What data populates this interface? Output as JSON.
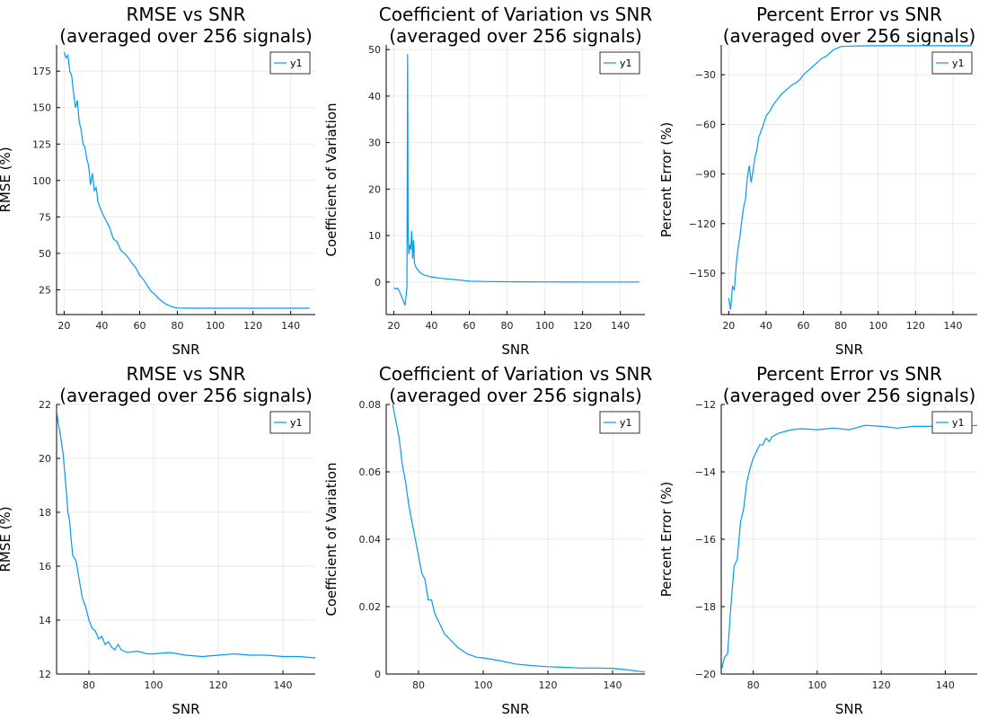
{
  "figure": {
    "background": "#ffffff",
    "series_color": "#009af9"
  },
  "chart_data": [
    {
      "type": "line",
      "title": [
        "RMSE vs SNR",
        "(averaged over 256 signals)"
      ],
      "xlabel": "SNR",
      "ylabel": "RMSE (%)",
      "xlim": [
        16,
        153
      ],
      "ylim": [
        8,
        193
      ],
      "xticks": [
        20,
        40,
        60,
        80,
        100,
        120,
        140
      ],
      "yticks": [
        25,
        50,
        75,
        100,
        125,
        150,
        175
      ],
      "grid": true,
      "legend": {
        "position": "top-right",
        "entries": [
          "y1"
        ]
      },
      "series": [
        {
          "name": "y1",
          "x": [
            20,
            21,
            22,
            23,
            24,
            25,
            26,
            27,
            28,
            29,
            30,
            31,
            32,
            33,
            34,
            35,
            36,
            37,
            38,
            40,
            42,
            44,
            46,
            48,
            50,
            52,
            54,
            56,
            58,
            60,
            62,
            64,
            66,
            68,
            70,
            72,
            74,
            76,
            78,
            80,
            85,
            90,
            100,
            110,
            120,
            130,
            140,
            150
          ],
          "y": [
            188,
            184,
            186,
            175,
            172,
            160,
            150,
            155,
            140,
            135,
            125,
            123,
            115,
            110,
            97,
            105,
            93,
            95,
            85,
            78,
            73,
            68,
            60,
            58,
            52,
            50,
            47,
            43,
            40,
            35,
            32,
            28,
            24,
            22,
            19,
            17,
            15,
            14,
            13,
            12.5,
            12.4,
            12.3,
            12.3,
            12.3,
            12.3,
            12.3,
            12.3,
            12.3
          ]
        }
      ]
    },
    {
      "type": "line",
      "title": [
        "Coefficient of Variation vs SNR",
        "(averaged over 256 signals)"
      ],
      "xlabel": "SNR",
      "ylabel": "Coefficient of Variation",
      "xlim": [
        16,
        153
      ],
      "ylim": [
        -7,
        51
      ],
      "xticks": [
        20,
        40,
        60,
        80,
        100,
        120,
        140
      ],
      "yticks": [
        0,
        10,
        20,
        30,
        40,
        50
      ],
      "grid": true,
      "legend": {
        "position": "top-right",
        "entries": [
          "y1"
        ]
      },
      "series": [
        {
          "name": "y1",
          "x": [
            20,
            21,
            22,
            23,
            24,
            25,
            26,
            27,
            27.3,
            27.6,
            28,
            28.5,
            29,
            29.5,
            30,
            30.5,
            31,
            32,
            33,
            34,
            36,
            38,
            40,
            45,
            50,
            55,
            60,
            70,
            80,
            100,
            120,
            150
          ],
          "y": [
            -1.2,
            -1.5,
            -1.3,
            -2,
            -3,
            -4,
            -5,
            -1,
            49,
            10,
            6,
            8,
            7,
            11,
            5,
            9,
            4,
            3,
            2.5,
            2,
            1.5,
            1.3,
            1.1,
            0.8,
            0.6,
            0.4,
            0.2,
            0.1,
            0.05,
            0.01,
            0.005,
            0.002
          ]
        }
      ]
    },
    {
      "type": "line",
      "title": [
        "Percent Error vs SNR",
        "(averaged over 256 signals)"
      ],
      "xlabel": "SNR",
      "ylabel": "Percent Error (%)",
      "xlim": [
        16,
        153
      ],
      "ylim": [
        -175,
        -12
      ],
      "xticks": [
        20,
        40,
        60,
        80,
        100,
        120,
        140
      ],
      "yticks": [
        -30,
        -60,
        -90,
        -120,
        -150
      ],
      "grid": true,
      "legend": {
        "position": "top-right",
        "entries": [
          "y1"
        ]
      },
      "series": [
        {
          "name": "y1",
          "x": [
            20,
            21,
            22,
            23,
            24,
            25,
            26,
            27,
            28,
            29,
            30,
            31,
            32,
            33,
            34,
            35,
            36,
            38,
            40,
            42,
            44,
            46,
            48,
            50,
            52,
            54,
            56,
            58,
            60,
            62,
            64,
            66,
            68,
            70,
            72,
            74,
            76,
            78,
            80,
            85,
            90,
            100,
            110,
            120,
            130,
            140,
            150
          ],
          "y": [
            -165,
            -172,
            -158,
            -160,
            -145,
            -135,
            -128,
            -118,
            -110,
            -105,
            -92,
            -85,
            -95,
            -88,
            -80,
            -76,
            -68,
            -62,
            -55,
            -52,
            -48,
            -45,
            -42,
            -40,
            -38,
            -36,
            -35,
            -33,
            -30,
            -28,
            -26,
            -24,
            -22,
            -20,
            -19,
            -17,
            -15,
            -14,
            -13,
            -12.7,
            -12.6,
            -12.5,
            -12.5,
            -12.5,
            -12.5,
            -12.5,
            -12.5
          ]
        }
      ]
    },
    {
      "type": "line",
      "title": [
        "RMSE vs SNR",
        "(averaged over 256 signals)"
      ],
      "xlabel": "SNR",
      "ylabel": "RMSE (%)",
      "xlim": [
        70,
        150
      ],
      "ylim": [
        12,
        22
      ],
      "xticks": [
        80,
        100,
        120,
        140
      ],
      "yticks": [
        12,
        14,
        16,
        18,
        20,
        22
      ],
      "grid": true,
      "legend": {
        "position": "top-right",
        "entries": [
          "y1"
        ]
      },
      "series": [
        {
          "name": "y1",
          "x": [
            70,
            70.5,
            71,
            72,
            72.5,
            73,
            73.5,
            74,
            74.5,
            75,
            76,
            77,
            78,
            79,
            80,
            81,
            82,
            83,
            84,
            85,
            86,
            87,
            88,
            89,
            90,
            92,
            95,
            98,
            100,
            105,
            110,
            115,
            120,
            125,
            130,
            135,
            140,
            145,
            150
          ],
          "y": [
            21.8,
            21.3,
            21,
            20.2,
            19.5,
            18.8,
            18,
            17.7,
            17,
            16.4,
            16.2,
            15.5,
            14.8,
            14.5,
            14,
            13.7,
            13.6,
            13.3,
            13.4,
            13.1,
            13.2,
            13,
            12.9,
            13.1,
            12.9,
            12.8,
            12.85,
            12.75,
            12.75,
            12.8,
            12.7,
            12.65,
            12.7,
            12.75,
            12.7,
            12.7,
            12.65,
            12.65,
            12.6
          ]
        }
      ]
    },
    {
      "type": "line",
      "title": [
        "Coefficient of Variation vs SNR",
        "(averaged over 256 signals)"
      ],
      "xlabel": "SNR",
      "ylabel": "Coefficient of Variation",
      "xlim": [
        70,
        150
      ],
      "ylim": [
        0,
        0.08
      ],
      "xticks": [
        80,
        100,
        120,
        140
      ],
      "yticks": [
        0.0,
        0.02,
        0.04,
        0.06,
        0.08
      ],
      "grid": true,
      "legend": {
        "position": "top-right",
        "entries": [
          "y1"
        ]
      },
      "series": [
        {
          "name": "y1",
          "x": [
            72,
            73,
            74,
            75,
            76,
            77,
            78,
            79,
            80,
            81,
            82,
            83,
            84,
            85,
            86,
            87,
            88,
            90,
            92,
            95,
            98,
            100,
            105,
            110,
            115,
            120,
            125,
            130,
            135,
            140,
            145,
            150
          ],
          "y": [
            0.08,
            0.075,
            0.07,
            0.062,
            0.057,
            0.05,
            0.045,
            0.04,
            0.035,
            0.03,
            0.028,
            0.022,
            0.022,
            0.018,
            0.016,
            0.014,
            0.012,
            0.01,
            0.008,
            0.006,
            0.005,
            0.0048,
            0.004,
            0.003,
            0.0025,
            0.0022,
            0.002,
            0.0018,
            0.0018,
            0.0017,
            0.0012,
            0.0006
          ]
        }
      ]
    },
    {
      "type": "line",
      "title": [
        "Percent Error vs SNR",
        "(averaged over 256 signals)"
      ],
      "xlabel": "SNR",
      "ylabel": "Percent Error (%)",
      "xlim": [
        70,
        150
      ],
      "ylim": [
        -20,
        -12
      ],
      "xticks": [
        80,
        100,
        120,
        140
      ],
      "yticks": [
        -20,
        -18,
        -16,
        -14,
        -12
      ],
      "grid": true,
      "legend": {
        "position": "top-right",
        "entries": [
          "y1"
        ]
      },
      "series": [
        {
          "name": "y1",
          "x": [
            70,
            71,
            72,
            73,
            74,
            75,
            76,
            77,
            78,
            79,
            80,
            81,
            82,
            83,
            84,
            85,
            86,
            87,
            88,
            90,
            92,
            95,
            100,
            105,
            110,
            115,
            120,
            125,
            130,
            135,
            140,
            145,
            150
          ],
          "y": [
            -19.9,
            -19.5,
            -19.4,
            -18,
            -16.8,
            -16.6,
            -15.5,
            -15.1,
            -14.3,
            -13.9,
            -13.6,
            -13.4,
            -13.2,
            -13.2,
            -13,
            -13.1,
            -12.95,
            -12.9,
            -12.85,
            -12.8,
            -12.75,
            -12.72,
            -12.75,
            -12.7,
            -12.75,
            -12.62,
            -12.65,
            -12.7,
            -12.65,
            -12.65,
            -12.62,
            -12.65,
            -12.62
          ]
        }
      ]
    }
  ]
}
